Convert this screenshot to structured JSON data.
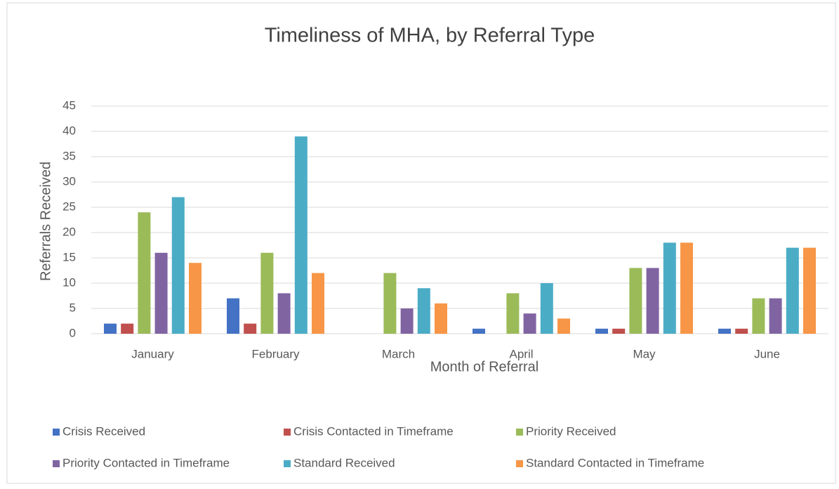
{
  "chart_data": {
    "type": "bar",
    "title": "Timeliness of MHA, by Referral Type",
    "x_label": "Month of Referral",
    "y_label": "Referrals Received",
    "categories": [
      "January",
      "February",
      "March",
      "April",
      "May",
      "June"
    ],
    "series": [
      {
        "name": "Crisis Received",
        "color": "#4472c4",
        "values": [
          2,
          7,
          0,
          1,
          1,
          1
        ]
      },
      {
        "name": "Crisis Contacted in Timeframe",
        "color": "#c0504d",
        "values": [
          2,
          2,
          0,
          0,
          1,
          1
        ]
      },
      {
        "name": "Priority Received",
        "color": "#9bbb59",
        "values": [
          24,
          16,
          12,
          8,
          13,
          7
        ]
      },
      {
        "name": "Priority Contacted in Timeframe",
        "color": "#8064a2",
        "values": [
          16,
          8,
          5,
          4,
          13,
          7
        ]
      },
      {
        "name": "Standard Received",
        "color": "#4bacc6",
        "values": [
          27,
          39,
          9,
          10,
          18,
          17
        ]
      },
      {
        "name": "Standard Contacted in Timeframe",
        "color": "#f79646",
        "values": [
          14,
          12,
          6,
          3,
          18,
          17
        ]
      }
    ],
    "ylim": [
      0,
      45
    ],
    "yticks": [
      0,
      5,
      10,
      15,
      20,
      25,
      30,
      35,
      40,
      45
    ],
    "grid": true,
    "legend": "bottom"
  }
}
